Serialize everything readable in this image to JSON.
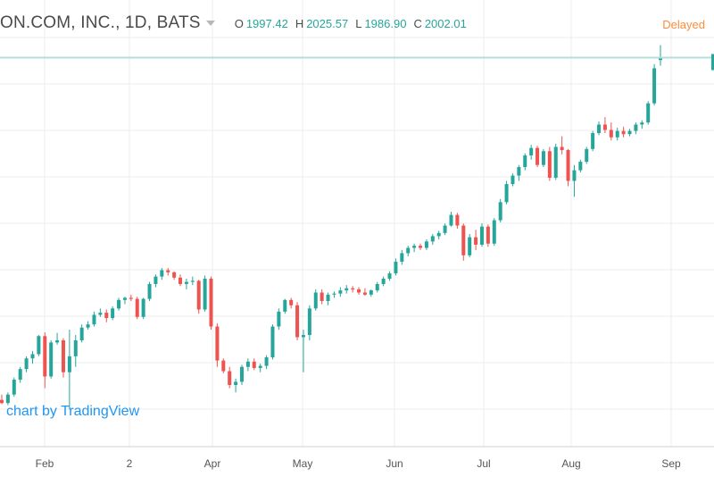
{
  "header": {
    "symbol": "ON.COM, INC., 1D, BATS",
    "open_label": "O",
    "open_value": "1997.42",
    "high_label": "H",
    "high_value": "2025.57",
    "low_label": "L",
    "low_value": "1986.90",
    "close_label": "C",
    "close_value": "2002.01"
  },
  "status": {
    "delayed": "Delayed"
  },
  "attribution": {
    "text": "chart by TradingView"
  },
  "colors": {
    "up": "#26a69a",
    "down": "#ef5350",
    "grid": "#eeeeee",
    "last_price_line": "#b2dfdb",
    "accent": "#ff8c3a",
    "link": "#2196f3"
  },
  "chart_data": {
    "type": "candlestick",
    "x_ticks": [
      "Feb",
      "2",
      "Apr",
      "May",
      "Jun",
      "Jul",
      "Aug",
      "Sep"
    ],
    "ylim": [
      1270,
      2060
    ],
    "grid": true,
    "last_close": 2002.01,
    "candles": [
      [
        1358,
        1368,
        1350,
        1352
      ],
      [
        1352,
        1372,
        1348,
        1368
      ],
      [
        1368,
        1400,
        1364,
        1396
      ],
      [
        1396,
        1420,
        1390,
        1416
      ],
      [
        1416,
        1440,
        1410,
        1436
      ],
      [
        1436,
        1450,
        1426,
        1444
      ],
      [
        1444,
        1480,
        1440,
        1478
      ],
      [
        1478,
        1485,
        1380,
        1402
      ],
      [
        1402,
        1470,
        1398,
        1466
      ],
      [
        1466,
        1484,
        1462,
        1470
      ],
      [
        1470,
        1474,
        1400,
        1410
      ],
      [
        1410,
        1490,
        1340,
        1440
      ],
      [
        1440,
        1480,
        1420,
        1470
      ],
      [
        1470,
        1500,
        1466,
        1494
      ],
      [
        1494,
        1506,
        1490,
        1500
      ],
      [
        1500,
        1524,
        1496,
        1518
      ],
      [
        1518,
        1530,
        1514,
        1522
      ],
      [
        1522,
        1528,
        1504,
        1512
      ],
      [
        1512,
        1534,
        1508,
        1530
      ],
      [
        1530,
        1550,
        1526,
        1546
      ],
      [
        1546,
        1552,
        1538,
        1550
      ],
      [
        1550,
        1556,
        1544,
        1548
      ],
      [
        1548,
        1552,
        1510,
        1514
      ],
      [
        1514,
        1550,
        1510,
        1548
      ],
      [
        1548,
        1580,
        1544,
        1576
      ],
      [
        1576,
        1594,
        1570,
        1590
      ],
      [
        1590,
        1606,
        1584,
        1602
      ],
      [
        1602,
        1606,
        1592,
        1598
      ],
      [
        1598,
        1600,
        1584,
        1588
      ],
      [
        1588,
        1594,
        1572,
        1576
      ],
      [
        1576,
        1586,
        1566,
        1580
      ],
      [
        1580,
        1590,
        1574,
        1582
      ],
      [
        1582,
        1584,
        1520,
        1528
      ],
      [
        1528,
        1592,
        1524,
        1586
      ],
      [
        1586,
        1590,
        1490,
        1496
      ],
      [
        1496,
        1502,
        1420,
        1432
      ],
      [
        1432,
        1436,
        1408,
        1412
      ],
      [
        1412,
        1420,
        1380,
        1386
      ],
      [
        1386,
        1398,
        1372,
        1392
      ],
      [
        1392,
        1424,
        1386,
        1420
      ],
      [
        1420,
        1436,
        1412,
        1430
      ],
      [
        1430,
        1436,
        1414,
        1418
      ],
      [
        1418,
        1426,
        1410,
        1422
      ],
      [
        1422,
        1442,
        1416,
        1438
      ],
      [
        1438,
        1500,
        1434,
        1496
      ],
      [
        1496,
        1530,
        1490,
        1524
      ],
      [
        1524,
        1548,
        1520,
        1546
      ],
      [
        1546,
        1550,
        1530,
        1536
      ],
      [
        1536,
        1542,
        1470,
        1476
      ],
      [
        1476,
        1490,
        1410,
        1480
      ],
      [
        1480,
        1536,
        1470,
        1530
      ],
      [
        1530,
        1566,
        1526,
        1560
      ],
      [
        1560,
        1566,
        1538,
        1544
      ],
      [
        1544,
        1560,
        1536,
        1556
      ],
      [
        1556,
        1562,
        1550,
        1558
      ],
      [
        1558,
        1570,
        1552,
        1564
      ],
      [
        1564,
        1574,
        1558,
        1568
      ],
      [
        1568,
        1572,
        1560,
        1566
      ],
      [
        1566,
        1570,
        1556,
        1560
      ],
      [
        1560,
        1568,
        1554,
        1556
      ],
      [
        1556,
        1566,
        1552,
        1564
      ],
      [
        1564,
        1580,
        1560,
        1576
      ],
      [
        1576,
        1590,
        1572,
        1586
      ],
      [
        1586,
        1600,
        1582,
        1596
      ],
      [
        1596,
        1624,
        1592,
        1618
      ],
      [
        1618,
        1640,
        1612,
        1634
      ],
      [
        1634,
        1648,
        1628,
        1644
      ],
      [
        1644,
        1652,
        1636,
        1648
      ],
      [
        1648,
        1652,
        1640,
        1644
      ],
      [
        1644,
        1660,
        1640,
        1656
      ],
      [
        1656,
        1670,
        1650,
        1666
      ],
      [
        1666,
        1676,
        1660,
        1672
      ],
      [
        1672,
        1690,
        1668,
        1686
      ],
      [
        1686,
        1712,
        1684,
        1706
      ],
      [
        1706,
        1710,
        1680,
        1686
      ],
      [
        1686,
        1690,
        1620,
        1630
      ],
      [
        1630,
        1670,
        1626,
        1664
      ],
      [
        1664,
        1678,
        1640,
        1650
      ],
      [
        1650,
        1690,
        1646,
        1684
      ],
      [
        1684,
        1688,
        1646,
        1652
      ],
      [
        1652,
        1700,
        1648,
        1696
      ],
      [
        1696,
        1736,
        1692,
        1730
      ],
      [
        1730,
        1770,
        1726,
        1764
      ],
      [
        1764,
        1784,
        1760,
        1780
      ],
      [
        1780,
        1800,
        1770,
        1796
      ],
      [
        1796,
        1822,
        1790,
        1818
      ],
      [
        1818,
        1838,
        1810,
        1832
      ],
      [
        1832,
        1836,
        1796,
        1800
      ],
      [
        1800,
        1830,
        1796,
        1826
      ],
      [
        1826,
        1834,
        1770,
        1776
      ],
      [
        1776,
        1840,
        1772,
        1834
      ],
      [
        1834,
        1854,
        1820,
        1828
      ],
      [
        1828,
        1830,
        1760,
        1770
      ],
      [
        1770,
        1800,
        1740,
        1790
      ],
      [
        1790,
        1810,
        1786,
        1806
      ],
      [
        1806,
        1834,
        1802,
        1830
      ],
      [
        1830,
        1864,
        1826,
        1860
      ],
      [
        1860,
        1882,
        1856,
        1876
      ],
      [
        1876,
        1890,
        1860,
        1866
      ],
      [
        1866,
        1880,
        1846,
        1852
      ],
      [
        1852,
        1870,
        1846,
        1864
      ],
      [
        1864,
        1872,
        1852,
        1858
      ],
      [
        1858,
        1868,
        1854,
        1864
      ],
      [
        1864,
        1880,
        1858,
        1876
      ],
      [
        1876,
        1884,
        1868,
        1880
      ],
      [
        1880,
        1920,
        1876,
        1916
      ],
      [
        1916,
        1990,
        1912,
        1982
      ],
      [
        1997.42,
        2025.57,
        1986.9,
        2002.01
      ]
    ]
  }
}
